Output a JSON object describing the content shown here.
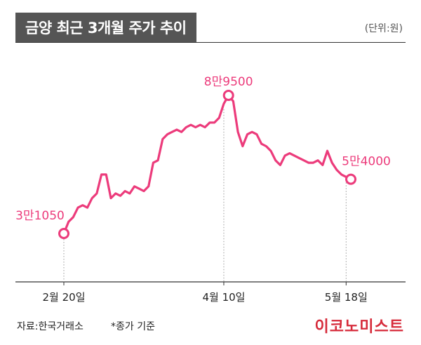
{
  "header": {
    "title": "금양 최근 3개월 주가 추이",
    "unit": "(단위:원)"
  },
  "footer": {
    "source": "자료:한국거래소",
    "note": "*종가 기준",
    "logo": "이코노미스트"
  },
  "colors": {
    "line": "#ec3b7b",
    "title_bg": "#555555",
    "logo": "#d62b3b"
  },
  "chart_data": {
    "type": "line",
    "title": "금양 최근 3개월 주가 추이",
    "ylim": [
      0,
      100000
    ],
    "grid": false,
    "x_ticks": [
      "2월 20일",
      "4월 10일",
      "5월 18일"
    ],
    "x_tick_index": [
      0,
      34,
      60
    ],
    "values": [
      31050,
      36000,
      38000,
      42000,
      43000,
      42000,
      46000,
      48000,
      56000,
      56000,
      46000,
      48000,
      47000,
      49000,
      48000,
      51000,
      50000,
      49000,
      51000,
      61000,
      62000,
      71000,
      73000,
      74000,
      75000,
      74000,
      76000,
      77000,
      76000,
      77000,
      76000,
      78000,
      78000,
      80000,
      86000,
      89500,
      87000,
      74000,
      68000,
      73000,
      74000,
      73000,
      69000,
      68000,
      66000,
      62000,
      60000,
      64000,
      65000,
      64000,
      63000,
      62000,
      61000,
      61000,
      62000,
      60000,
      66000,
      61000,
      58000,
      56000,
      55000,
      54000
    ],
    "annotations": [
      {
        "label": "3만1050",
        "index": 0
      },
      {
        "label": "8만9500",
        "index": 35
      },
      {
        "label": "5만4000",
        "index": 61
      }
    ]
  }
}
